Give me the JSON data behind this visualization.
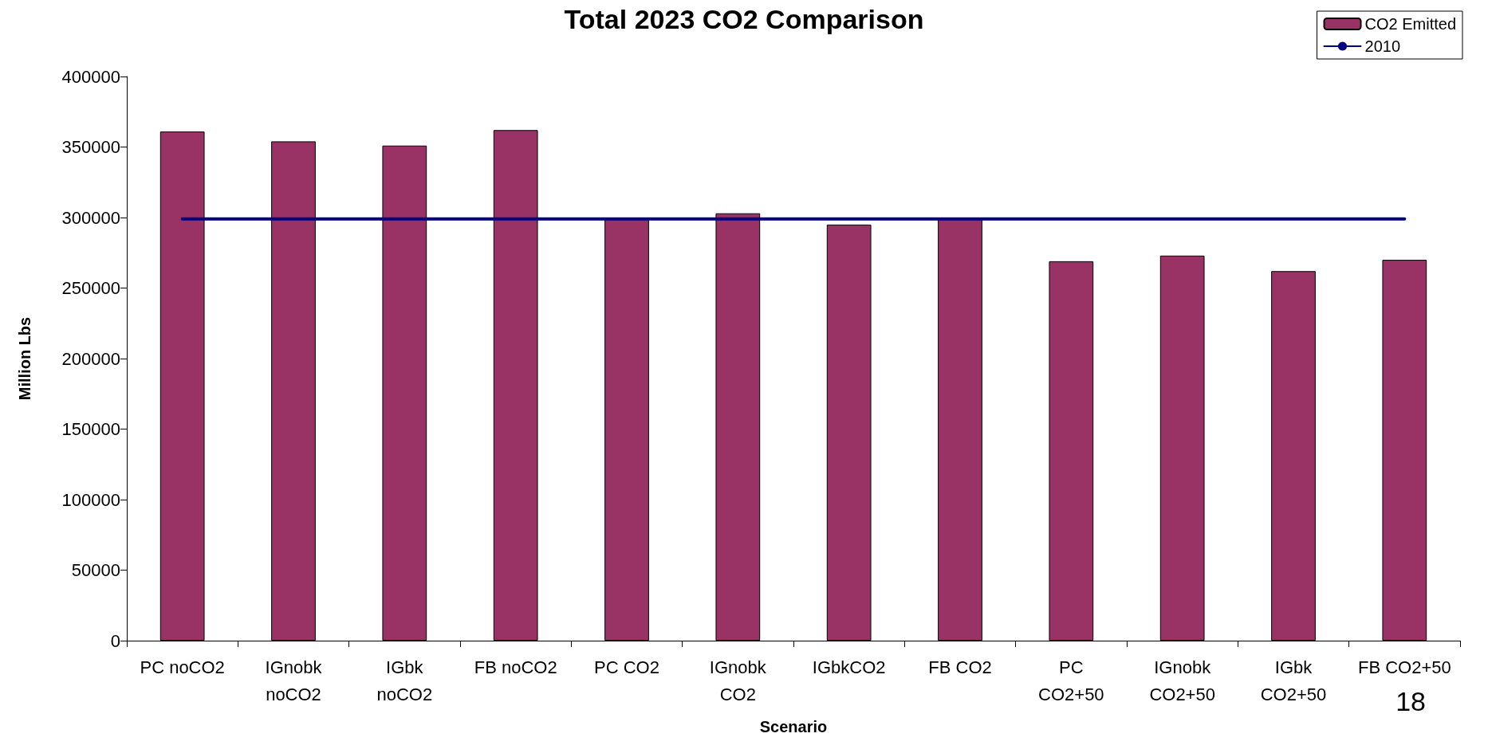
{
  "chart_data": {
    "type": "bar",
    "title": "Total 2023 CO2 Comparison",
    "xlabel": "Scenario",
    "ylabel": "Million Lbs",
    "categories": [
      "PC noCO2",
      "IGnobk\nnoCO2",
      "IGbk\nnoCO2",
      "FB noCO2",
      "PC CO2",
      "IGnobk\nCO2",
      "IGbkCO2",
      "FB CO2",
      "PC\nCO2+50",
      "IGnobk\nCO2+50",
      "IGbk\nCO2+50",
      "FB CO2+50"
    ],
    "series": [
      {
        "name": "CO2 Emitted",
        "color": "#993366",
        "values": [
          361000,
          354000,
          351000,
          362000,
          299000,
          303000,
          295000,
          299000,
          269000,
          273000,
          262000,
          270000
        ]
      },
      {
        "name": "2010",
        "type": "line",
        "color": "#000080",
        "values": [
          299000,
          299000,
          299000,
          299000,
          299000,
          299000,
          299000,
          299000,
          299000,
          299000,
          299000,
          299000
        ]
      }
    ],
    "ylim": [
      0,
      400000
    ],
    "yticks": [
      0,
      50000,
      100000,
      150000,
      200000,
      250000,
      300000,
      350000,
      400000
    ],
    "grid": false,
    "marker": "none",
    "legend": "top right",
    "annotations": [
      "18"
    ]
  }
}
